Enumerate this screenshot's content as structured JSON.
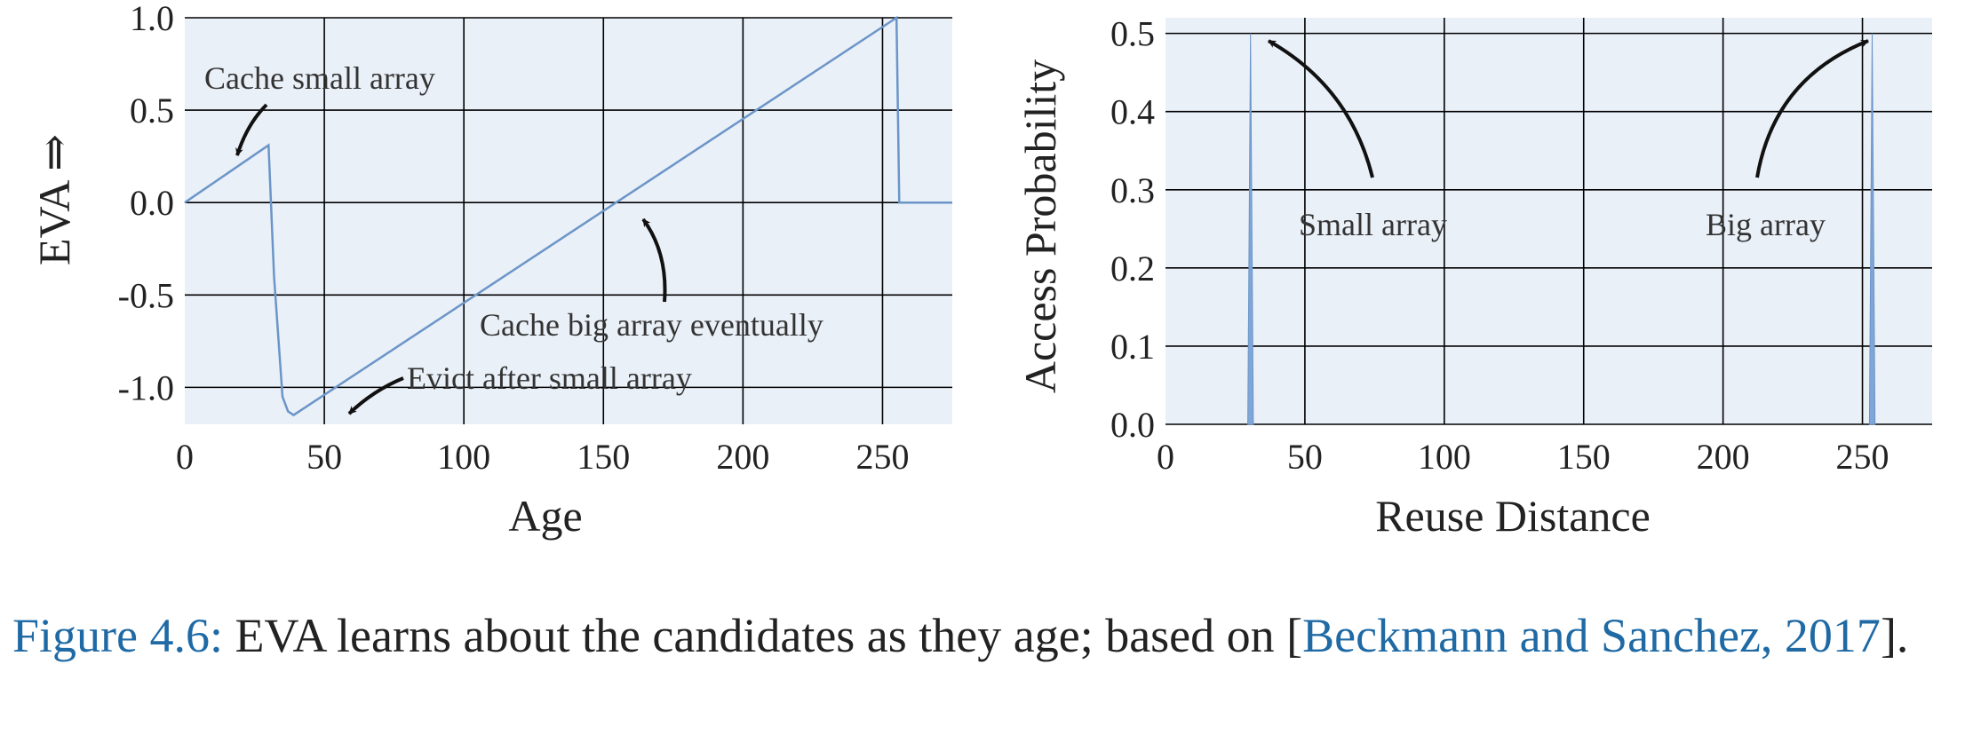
{
  "chart_data": [
    {
      "type": "line",
      "xlabel": "Age",
      "ylabel": "EVA ⇒",
      "xlim": [
        0,
        275
      ],
      "ylim": [
        -1.2,
        1.0
      ],
      "xticks": [
        0,
        50,
        100,
        150,
        200,
        250
      ],
      "yticks": [
        1.0,
        0.5,
        0.0,
        -0.5,
        -1.0
      ],
      "xtick_labels": [
        "0",
        "50",
        "100",
        "150",
        "200",
        "250"
      ],
      "ytick_labels": [
        "1.0",
        "0.5",
        "0.0",
        "-0.5",
        "-1.0"
      ],
      "grid": true,
      "series": [
        {
          "x": [
            0,
            30,
            32,
            35,
            37,
            39,
            41,
            255,
            256,
            275
          ],
          "y": [
            0.0,
            0.31,
            -0.4,
            -1.05,
            -1.13,
            -1.15,
            -1.13,
            1.0,
            0.0,
            0.0
          ]
        }
      ],
      "annotations": [
        {
          "text": "Cache small array",
          "x": 18,
          "y": 0.26
        },
        {
          "text": "Cache big array eventually",
          "x": 160,
          "y": -0.08
        },
        {
          "text": "Evict after small array",
          "x": 57,
          "y": -1.15
        }
      ]
    },
    {
      "type": "area",
      "xlabel": "Reuse Distance",
      "ylabel": "Access Probability",
      "xlim": [
        0,
        275
      ],
      "ylim": [
        0,
        0.52
      ],
      "xticks": [
        0,
        50,
        100,
        150,
        200,
        250
      ],
      "yticks": [
        0.5,
        0.4,
        0.3,
        0.2,
        0.1,
        0.0
      ],
      "xtick_labels": [
        "0",
        "50",
        "100",
        "150",
        "200",
        "250"
      ],
      "ytick_labels": [
        "0.5",
        "0.4",
        "0.3",
        "0.2",
        "0.1",
        "0.0"
      ],
      "grid": true,
      "series": [
        {
          "x": [
            29.5,
            30.5,
            31.5,
            252.5,
            253.5,
            254.5
          ],
          "y": [
            0.0,
            0.5,
            0.0,
            0.0,
            0.5,
            0.0
          ]
        }
      ],
      "annotations": [
        {
          "text": "Small array",
          "x": 36,
          "y": 0.495
        },
        {
          "text": "Big array",
          "x": 252,
          "y": 0.495
        }
      ]
    }
  ],
  "caption": {
    "label": "Figure 4.6:",
    "text": " EVA learns about the candidates as they age; based on [",
    "citation": "Beckmann and Sanchez, 2017",
    "end": "]."
  },
  "colors": {
    "line": "#6b95c8",
    "fill": "#7fa6d6",
    "plot_bg": "#eaf0f8",
    "grid": "#000000",
    "caption_link": "#1f6aa5"
  }
}
